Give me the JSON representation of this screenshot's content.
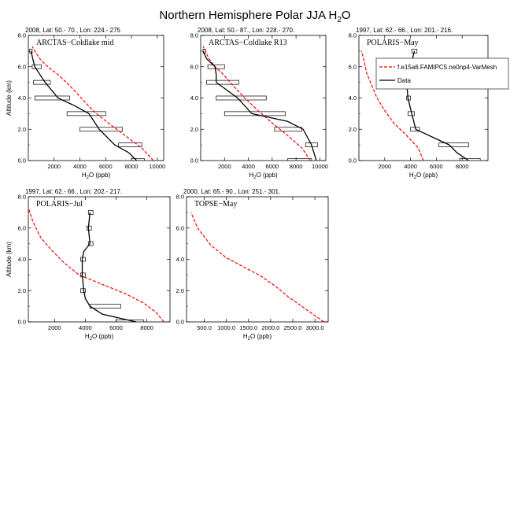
{
  "figure": {
    "title": "Northern Hemisphere Polar JJA H",
    "title_sub": "2",
    "title_tail": "O",
    "ylabel": "Altitude (km)",
    "xlabel_head": "H",
    "xlabel_sub": "2",
    "xlabel_tail": "O (ppb)"
  },
  "legend": {
    "panel": 2,
    "model_label": "f.e15a6.FAMIPC5.ne0np4-VarMesh",
    "obs_label": "Data",
    "model_color": "#ff0000",
    "obs_color": "#000000"
  },
  "chart_data": [
    {
      "type": "line",
      "header": "2008, Lat:  50.- 70., Lon: 224.- 275",
      "title": "ARCTAS−Coldlake mid",
      "xlim": [
        0,
        10500
      ],
      "ylim": [
        0,
        8
      ],
      "xticks": [
        2000,
        4000,
        6000,
        8000,
        10000
      ],
      "xtick_labels": [
        "2000",
        "4000",
        "6000",
        "8000",
        "10000"
      ],
      "yticks": [
        0,
        2,
        4,
        6,
        8
      ],
      "ytick_labels": [
        "0.0",
        "2.0",
        "4.0",
        "6.0",
        "8.0"
      ],
      "model": {
        "x": [
          9700,
          8800,
          7500,
          6200,
          5000,
          4100,
          3200,
          2300,
          1500,
          900,
          500,
          300
        ],
        "y": [
          0,
          0.8,
          1.6,
          2.4,
          3.2,
          4.0,
          4.8,
          5.5,
          6.0,
          6.5,
          7.0,
          7.3
        ]
      },
      "obs": {
        "x": [
          8400,
          7800,
          6700,
          5500,
          4700,
          3600,
          2300,
          1300,
          900,
          500,
          200
        ],
        "y": [
          0,
          0.5,
          1.0,
          2.0,
          3.0,
          3.5,
          4.0,
          5.0,
          5.5,
          6.0,
          7.0
        ]
      },
      "bars": [
        {
          "y": 0,
          "lo": 8000,
          "hi": 9000
        },
        {
          "y": 1.0,
          "lo": 7000,
          "hi": 8800
        },
        {
          "y": 2.0,
          "lo": 4000,
          "hi": 7300
        },
        {
          "y": 3.0,
          "lo": 3000,
          "hi": 6000
        },
        {
          "y": 4.0,
          "lo": 500,
          "hi": 3200
        },
        {
          "y": 5.0,
          "lo": 400,
          "hi": 1700
        },
        {
          "y": 6.0,
          "lo": 300,
          "hi": 1000
        },
        {
          "y": 7.0,
          "lo": 100,
          "hi": 300
        }
      ]
    },
    {
      "type": "line",
      "header": "2008, Lat:  50.- 87., Lon: 228.- 270.",
      "title": "ARCTAS−Coldlake R13",
      "xlim": [
        0,
        10500
      ],
      "ylim": [
        0,
        8
      ],
      "xticks": [
        2000,
        4000,
        6000,
        8000,
        10000
      ],
      "xtick_labels": [
        "2000",
        "4000",
        "6000",
        "8000",
        "10000"
      ],
      "yticks": [
        0,
        2,
        4,
        6,
        8
      ],
      "ytick_labels": [
        "0.0",
        "2.0",
        "4.0",
        "6.0",
        "8.0"
      ],
      "model": {
        "x": [
          9200,
          8500,
          7300,
          6000,
          4800,
          3700,
          2700,
          1900,
          1200,
          700,
          400,
          200
        ],
        "y": [
          0,
          0.8,
          1.6,
          2.4,
          3.2,
          4.0,
          4.8,
          5.5,
          6.0,
          6.5,
          7.0,
          7.3
        ]
      },
      "obs": {
        "x": [
          9700,
          9300,
          8600,
          7300,
          4300,
          3100,
          1300,
          1300,
          1200,
          500,
          200
        ],
        "y": [
          0,
          1.0,
          2.0,
          2.5,
          3.0,
          4.0,
          5.0,
          5.5,
          6.0,
          6.5,
          7.0
        ]
      },
      "bars": [
        {
          "y": 0,
          "lo": 7300,
          "hi": 9300
        },
        {
          "y": 1.0,
          "lo": 8800,
          "hi": 9800
        },
        {
          "y": 2.0,
          "lo": 6200,
          "hi": 8500
        },
        {
          "y": 3.0,
          "lo": 2000,
          "hi": 7100
        },
        {
          "y": 4.0,
          "lo": 1300,
          "hi": 5500
        },
        {
          "y": 5.0,
          "lo": 500,
          "hi": 3200
        },
        {
          "y": 6.0,
          "lo": 600,
          "hi": 2000
        },
        {
          "y": 7.0,
          "lo": 200,
          "hi": 400
        }
      ]
    },
    {
      "type": "line",
      "header": "1997, Lat: 62.- 66., Lon: 201.- 216.",
      "title": "POLARIS−May",
      "xlim": [
        0,
        10000
      ],
      "ylim": [
        0,
        8
      ],
      "xticks": [
        2000,
        4000,
        6000,
        8000
      ],
      "xtick_labels": [
        "2000",
        "4000",
        "6000",
        "8000"
      ],
      "yticks": [
        0,
        2,
        4,
        6,
        8
      ],
      "ytick_labels": [
        "0.0",
        "2.0",
        "4.0",
        "6.0",
        "8.0"
      ],
      "model": {
        "x": [
          5000,
          4600,
          3700,
          2700,
          2000,
          1400,
          1000,
          600,
          400,
          200
        ],
        "y": [
          0,
          0.8,
          1.6,
          2.4,
          3.2,
          4.0,
          4.8,
          5.6,
          6.4,
          7.0
        ]
      },
      "obs": {
        "x": [
          8500,
          7600,
          7000,
          4400,
          4100,
          3800,
          3700,
          4000,
          4300
        ],
        "y": [
          0,
          0.5,
          1.0,
          2.0,
          3.0,
          4.0,
          5.0,
          6.0,
          7.0
        ]
      },
      "bars": [
        {
          "y": 0,
          "lo": 7800,
          "hi": 9400
        },
        {
          "y": 1.0,
          "lo": 6200,
          "hi": 8500
        },
        {
          "y": 2.0,
          "lo": 4000,
          "hi": 4700
        },
        {
          "y": 3.0,
          "lo": 3800,
          "hi": 4300
        },
        {
          "y": 4.0,
          "lo": 3700,
          "hi": 4000
        },
        {
          "y": 5.0,
          "lo": 3600,
          "hi": 3900
        },
        {
          "y": 6.0,
          "lo": 3800,
          "hi": 4200
        },
        {
          "y": 7.0,
          "lo": 4100,
          "hi": 4500
        }
      ]
    },
    {
      "type": "line",
      "header": "1997, Lat: 62.- 66., Lon: 202.- 217.",
      "title": "POLARIS−Jul",
      "xlim": [
        300,
        9500
      ],
      "ylim": [
        0,
        8
      ],
      "xticks": [
        2000,
        4000,
        6000,
        8000
      ],
      "xtick_labels": [
        "2000",
        "4000",
        "6000",
        "8000"
      ],
      "yticks": [
        0,
        2,
        4,
        6,
        8
      ],
      "ytick_labels": [
        "0.0",
        "2.0",
        "4.0",
        "6.0",
        "8.0"
      ],
      "model": {
        "x": [
          9100,
          8600,
          7800,
          6600,
          5100,
          3600,
          2600,
          1800,
          1100,
          600,
          300
        ],
        "y": [
          0,
          0.6,
          1.2,
          1.8,
          2.4,
          3.0,
          3.8,
          4.6,
          5.4,
          6.4,
          7.3
        ]
      },
      "obs": {
        "x": [
          7300,
          5100,
          4300,
          4000,
          3900,
          3800,
          3800,
          3900,
          4300,
          4200,
          4300
        ],
        "y": [
          0,
          0.5,
          1.0,
          1.5,
          2.0,
          3.0,
          4.0,
          4.5,
          5.0,
          6.0,
          7.0
        ]
      },
      "bars": [
        {
          "y": 0,
          "lo": 6000,
          "hi": 7800
        },
        {
          "y": 1.0,
          "lo": 4300,
          "hi": 6300
        },
        {
          "y": 2.0,
          "lo": 3700,
          "hi": 4000
        },
        {
          "y": 3.0,
          "lo": 3700,
          "hi": 4000
        },
        {
          "y": 4.0,
          "lo": 3700,
          "hi": 4000
        },
        {
          "y": 5.0,
          "lo": 4200,
          "hi": 4500
        },
        {
          "y": 6.0,
          "lo": 4100,
          "hi": 4400
        },
        {
          "y": 7.0,
          "lo": 4200,
          "hi": 4500
        }
      ]
    },
    {
      "type": "line",
      "header": "2000, Lat: 65.- 90., Lon: 251.- 301.",
      "title": "TOPSE−May",
      "xlim": [
        100,
        3300
      ],
      "ylim": [
        0,
        8
      ],
      "xticks": [
        500,
        1000,
        1500,
        2000,
        2500,
        3000
      ],
      "xtick_labels": [
        "500.0",
        "1000.0",
        "1500.0",
        "2000.0",
        "2500.0",
        "3000.0"
      ],
      "yticks": [
        0,
        2,
        4,
        6,
        8
      ],
      "ytick_labels": [
        "0.0",
        "2.0",
        "4.0",
        "6.0",
        "8.0"
      ],
      "model": {
        "x": [
          3200,
          3000,
          2700,
          2400,
          2100,
          1800,
          1400,
          1000,
          650,
          350,
          200
        ],
        "y": [
          0,
          0.4,
          1.0,
          1.6,
          2.3,
          2.9,
          3.5,
          4.1,
          4.9,
          6.0,
          7.0
        ]
      },
      "obs": null,
      "bars": []
    }
  ]
}
